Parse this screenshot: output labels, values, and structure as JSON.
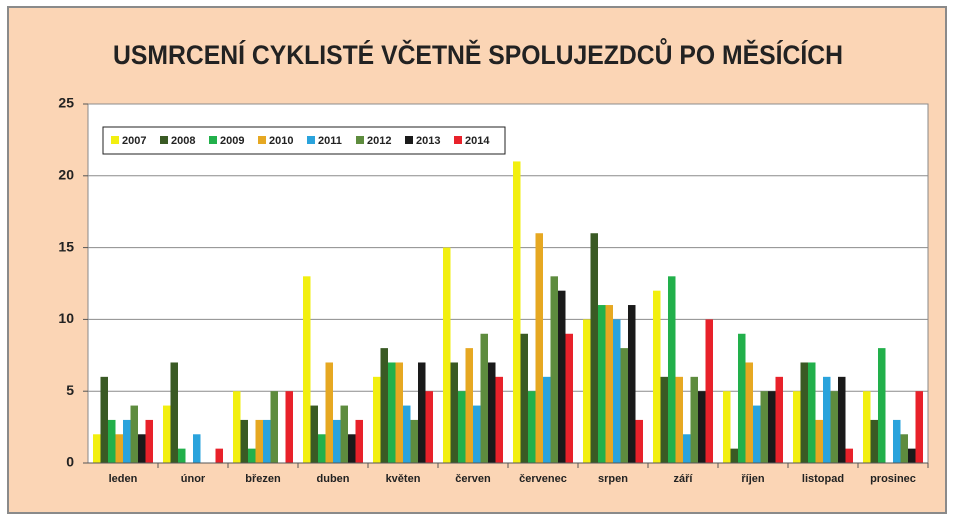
{
  "chart_data": {
    "type": "bar",
    "title": "USMRCENÍ CYKLISTÉ VČETNĚ SPOLUJEZDCŮ PO MĚSÍCÍCH",
    "categories": [
      "leden",
      "únor",
      "březen",
      "duben",
      "květen",
      "červen",
      "červenec",
      "srpen",
      "září",
      "říjen",
      "listopad",
      "prosinec"
    ],
    "series": [
      {
        "name": "2007",
        "color": "#f2ef0f",
        "values": [
          2,
          4,
          5,
          13,
          6,
          15,
          21,
          10,
          12,
          5,
          5,
          5
        ]
      },
      {
        "name": "2008",
        "color": "#3a5a24",
        "values": [
          6,
          7,
          3,
          4,
          8,
          7,
          9,
          16,
          6,
          1,
          7,
          3
        ]
      },
      {
        "name": "2009",
        "color": "#22b04b",
        "values": [
          3,
          1,
          1,
          2,
          7,
          5,
          5,
          11,
          13,
          9,
          7,
          8
        ]
      },
      {
        "name": "2010",
        "color": "#e6a822",
        "values": [
          2,
          0,
          3,
          7,
          7,
          8,
          16,
          11,
          6,
          7,
          3,
          0
        ]
      },
      {
        "name": "2011",
        "color": "#2aa3dc",
        "values": [
          3,
          2,
          3,
          3,
          4,
          4,
          6,
          10,
          2,
          4,
          6,
          3
        ]
      },
      {
        "name": "2012",
        "color": "#5e8c3e",
        "values": [
          4,
          0,
          5,
          4,
          3,
          9,
          13,
          8,
          6,
          5,
          5,
          2
        ]
      },
      {
        "name": "2013",
        "color": "#1a1a1a",
        "values": [
          2,
          0,
          0,
          2,
          7,
          7,
          12,
          11,
          5,
          5,
          6,
          1
        ]
      },
      {
        "name": "2014",
        "color": "#e8212a",
        "values": [
          3,
          1,
          5,
          3,
          5,
          6,
          9,
          3,
          10,
          6,
          1,
          5
        ]
      }
    ],
    "ylim": [
      0,
      25
    ],
    "yticks": [
      0,
      5,
      10,
      15,
      20,
      25
    ],
    "grid": true,
    "legend": "top-left"
  }
}
